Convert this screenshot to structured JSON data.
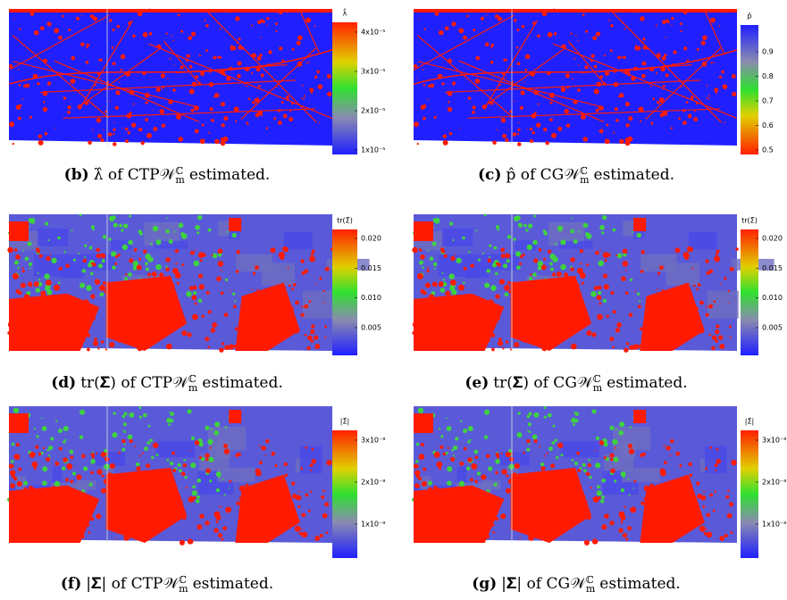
{
  "panels": [
    {
      "label": "(b)",
      "text": "λ̂ of CTP𝒲",
      "sup": "ℂ",
      "sub": "m",
      "suffix": "estimated.",
      "colorbar": {
        "title": "λ̂",
        "ticks": [
          "4x10⁻⁵",
          "3x10⁻⁵",
          "2x10⁻⁵",
          "1x10⁻⁵"
        ]
      }
    },
    {
      "label": "(c)",
      "text": "p̂ of CG𝒲",
      "sup": "ℂ",
      "sub": "m",
      "suffix": "estimated.",
      "colorbar": {
        "title": "p̂",
        "ticks": [
          "0.9",
          "0.8",
          "0.7",
          "0.6",
          "0.5"
        ]
      }
    },
    {
      "label": "(d)",
      "text": "tr(𝚺̂) of CTP𝒲",
      "sup": "ℂ",
      "sub": "m",
      "suffix": "estimated.",
      "colorbar": {
        "title": "tr(Σ̂)",
        "ticks": [
          "0.020",
          "0.015",
          "0.010",
          "0.005"
        ]
      }
    },
    {
      "label": "(e)",
      "text": "tr(𝚺̂) of CG𝒲",
      "sup": "ℂ",
      "sub": "m",
      "suffix": "estimated.",
      "colorbar": {
        "title": "tr(Σ̂)",
        "ticks": [
          "0.020",
          "0.015",
          "0.010",
          "0.005"
        ]
      }
    },
    {
      "label": "(f)",
      "text": "|𝚺̂| of CTP𝒲",
      "sup": "ℂ",
      "sub": "m",
      "suffix": "estimated.",
      "colorbar": {
        "title": "|Σ̂|",
        "ticks": [
          "3x10⁻⁸",
          "2x10⁻⁸",
          "1x10⁻⁸"
        ]
      }
    },
    {
      "label": "(g)",
      "text": "|𝚺̂| of CG𝒲",
      "sup": "ℂ",
      "sub": "m",
      "suffix": "estimated.",
      "colorbar": {
        "title": "|Σ̂|",
        "ticks": [
          "3x10⁻⁸",
          "2x10⁻⁸",
          "1x10⁻⁸"
        ]
      }
    }
  ]
}
